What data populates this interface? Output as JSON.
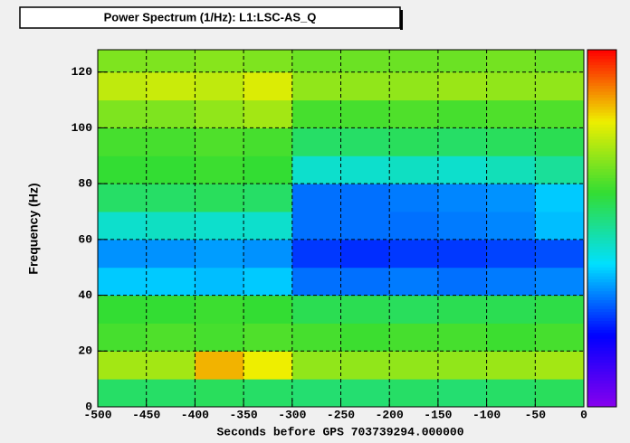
{
  "chart_data": {
    "type": "heatmap",
    "title": "Power Spectrum (1/Hz): L1:LSC-AS_Q",
    "x_label": "Seconds before GPS 703739294.000000",
    "y_label": "Frequency (Hz)",
    "x_bins": [
      -500,
      -450,
      -400,
      -350,
      -300,
      -250,
      -200,
      -150,
      -100,
      -50,
      0
    ],
    "y_bins": [
      0,
      10,
      20,
      30,
      40,
      50,
      60,
      70,
      80,
      90,
      100,
      110,
      120,
      128
    ],
    "values": [
      [
        0.55,
        0.55,
        0.56,
        0.55,
        0.54,
        0.54,
        0.55,
        0.54,
        0.55,
        0.56
      ],
      [
        0.72,
        0.72,
        0.85,
        0.8,
        0.7,
        0.7,
        0.7,
        0.7,
        0.71,
        0.72
      ],
      [
        0.62,
        0.63,
        0.62,
        0.63,
        0.62,
        0.61,
        0.62,
        0.62,
        0.61,
        0.62
      ],
      [
        0.6,
        0.6,
        0.61,
        0.6,
        0.57,
        0.57,
        0.56,
        0.57,
        0.57,
        0.58
      ],
      [
        0.38,
        0.38,
        0.37,
        0.38,
        0.3,
        0.3,
        0.31,
        0.3,
        0.31,
        0.32
      ],
      [
        0.33,
        0.33,
        0.34,
        0.33,
        0.25,
        0.24,
        0.25,
        0.25,
        0.26,
        0.27
      ],
      [
        0.45,
        0.46,
        0.45,
        0.45,
        0.3,
        0.3,
        0.3,
        0.31,
        0.32,
        0.37
      ],
      [
        0.55,
        0.55,
        0.56,
        0.55,
        0.3,
        0.3,
        0.31,
        0.32,
        0.33,
        0.38
      ],
      [
        0.6,
        0.6,
        0.61,
        0.6,
        0.45,
        0.45,
        0.46,
        0.45,
        0.47,
        0.5
      ],
      [
        0.62,
        0.62,
        0.63,
        0.62,
        0.55,
        0.55,
        0.56,
        0.55,
        0.56,
        0.57
      ],
      [
        0.68,
        0.68,
        0.7,
        0.72,
        0.62,
        0.62,
        0.63,
        0.62,
        0.63,
        0.63
      ],
      [
        0.75,
        0.76,
        0.75,
        0.78,
        0.7,
        0.7,
        0.7,
        0.71,
        0.7,
        0.7
      ],
      [
        0.68,
        0.68,
        0.69,
        0.68,
        0.66,
        0.66,
        0.66,
        0.66,
        0.67,
        0.66
      ]
    ],
    "xlim": [
      -500,
      0
    ],
    "ylim": [
      0,
      128
    ],
    "zlim": [
      0,
      1
    ],
    "xticks": [
      -500,
      -450,
      -400,
      -350,
      -300,
      -250,
      -200,
      -150,
      -100,
      -50,
      0
    ],
    "yticks": [
      0,
      20,
      40,
      60,
      80,
      100,
      120
    ],
    "grid": true,
    "colormap": [
      "#8800ee",
      "#0000ff",
      "#00e0ff",
      "#33dd33",
      "#eeee00",
      "#ff0000"
    ]
  }
}
